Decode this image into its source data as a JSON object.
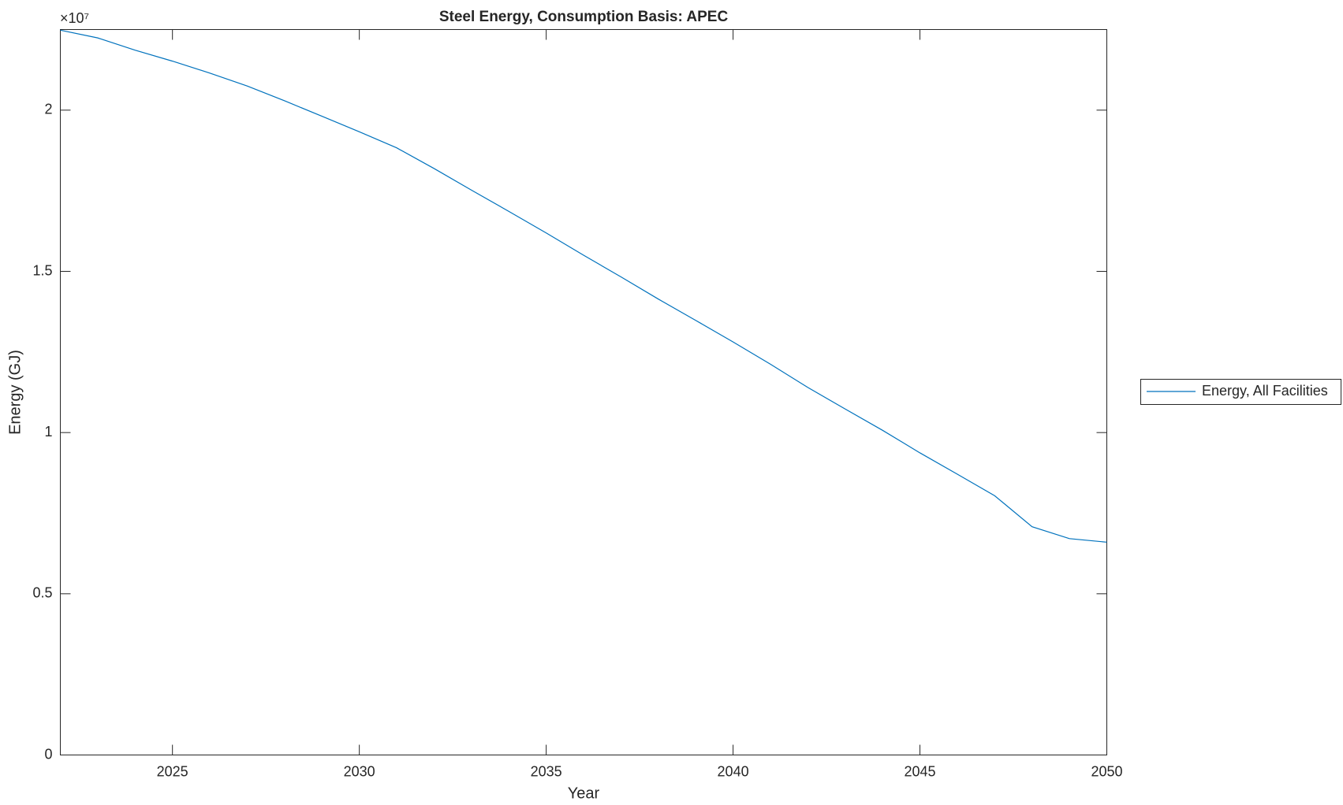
{
  "chart_data": {
    "type": "line",
    "title": "Steel Energy, Consumption Basis: APEC",
    "x_label": "Year",
    "y_label": "Energy (GJ)",
    "y_exponent": "×10⁷",
    "x": [
      2022,
      2023,
      2024,
      2025,
      2026,
      2027,
      2028,
      2029,
      2030,
      2031,
      2032,
      2033,
      2034,
      2035,
      2036,
      2037,
      2038,
      2039,
      2040,
      2041,
      2042,
      2043,
      2044,
      2045,
      2046,
      2047,
      2048,
      2049,
      2050
    ],
    "series": [
      {
        "name": "Energy, All Facilities",
        "color": "#0072bd",
        "values": [
          22480000,
          22240000,
          21860000,
          21520000,
          21150000,
          20750000,
          20290000,
          19810000,
          19330000,
          18830000,
          18190000,
          17520000,
          16860000,
          16190000,
          15500000,
          14830000,
          14140000,
          13480000,
          12810000,
          12120000,
          11400000,
          10730000,
          10070000,
          9370000,
          8710000,
          8040000,
          7080000,
          6710000,
          6600000
        ]
      }
    ],
    "xlim": [
      2022,
      2050
    ],
    "xticks": [
      2025,
      2030,
      2035,
      2040,
      2045,
      2050
    ],
    "ylim": [
      0,
      22500000
    ],
    "yticks": [
      {
        "value": 0,
        "label": "0"
      },
      {
        "value": 5000000,
        "label": "0.5"
      },
      {
        "value": 10000000,
        "label": "1"
      },
      {
        "value": 15000000,
        "label": "1.5"
      },
      {
        "value": 20000000,
        "label": "2"
      }
    ],
    "legend": "outside-right"
  }
}
